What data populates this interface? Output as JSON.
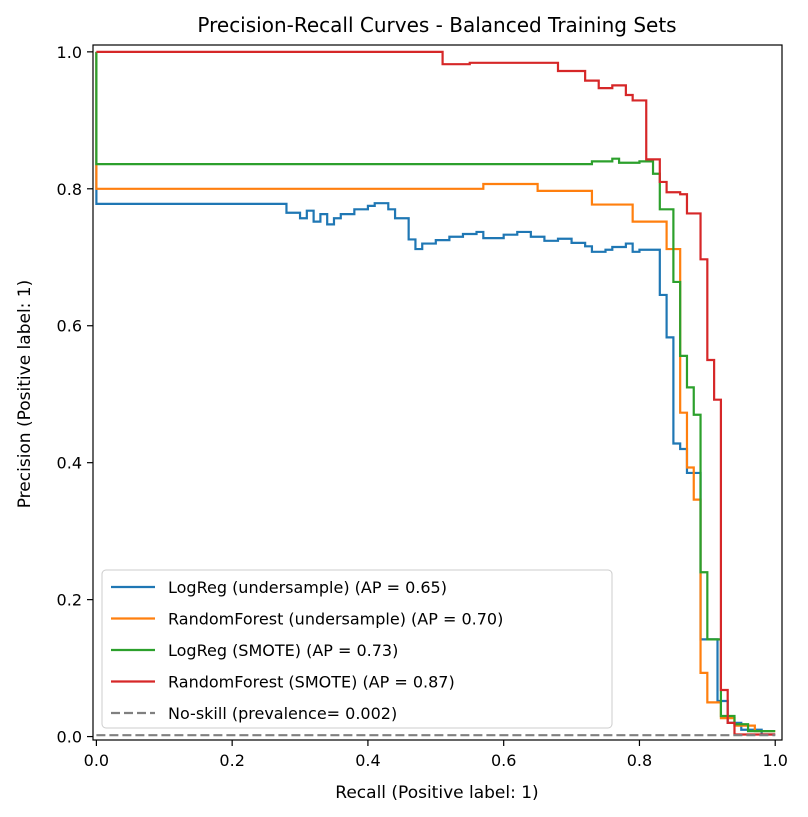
{
  "chart_data": {
    "type": "line",
    "title": "Precision-Recall Curves - Balanced Training Sets",
    "xlabel": "Recall (Positive label: 1)",
    "ylabel": "Precision (Positive label: 1)",
    "xlim": [
      -0.005,
      1.01
    ],
    "ylim": [
      -0.005,
      1.01
    ],
    "xticks": [
      0.0,
      0.2,
      0.4,
      0.6,
      0.8,
      1.0
    ],
    "xtick_labels": [
      "0.0",
      "0.2",
      "0.4",
      "0.6",
      "0.8",
      "1.0"
    ],
    "yticks": [
      0.0,
      0.2,
      0.4,
      0.6,
      0.8,
      1.0
    ],
    "ytick_labels": [
      "0.0",
      "0.2",
      "0.4",
      "0.6",
      "0.8",
      "1.0"
    ],
    "grid": false,
    "legend_position": "lower-left",
    "series": [
      {
        "name": "LogReg (undersample) (AP = 0.65)",
        "color": "#1f77b4",
        "step": true,
        "points": [
          [
            0.0,
            1.0
          ],
          [
            0.0,
            0.778
          ],
          [
            0.28,
            0.778
          ],
          [
            0.28,
            0.765
          ],
          [
            0.3,
            0.765
          ],
          [
            0.3,
            0.757
          ],
          [
            0.31,
            0.757
          ],
          [
            0.31,
            0.768
          ],
          [
            0.32,
            0.768
          ],
          [
            0.32,
            0.752
          ],
          [
            0.33,
            0.752
          ],
          [
            0.33,
            0.763
          ],
          [
            0.34,
            0.763
          ],
          [
            0.34,
            0.748
          ],
          [
            0.35,
            0.748
          ],
          [
            0.35,
            0.757
          ],
          [
            0.36,
            0.757
          ],
          [
            0.36,
            0.763
          ],
          [
            0.38,
            0.763
          ],
          [
            0.38,
            0.77
          ],
          [
            0.4,
            0.77
          ],
          [
            0.4,
            0.775
          ],
          [
            0.41,
            0.775
          ],
          [
            0.41,
            0.779
          ],
          [
            0.43,
            0.779
          ],
          [
            0.43,
            0.77
          ],
          [
            0.44,
            0.77
          ],
          [
            0.44,
            0.757
          ],
          [
            0.46,
            0.757
          ],
          [
            0.46,
            0.726
          ],
          [
            0.47,
            0.726
          ],
          [
            0.47,
            0.712
          ],
          [
            0.48,
            0.712
          ],
          [
            0.48,
            0.72
          ],
          [
            0.5,
            0.72
          ],
          [
            0.5,
            0.725
          ],
          [
            0.52,
            0.725
          ],
          [
            0.52,
            0.73
          ],
          [
            0.54,
            0.73
          ],
          [
            0.54,
            0.734
          ],
          [
            0.56,
            0.734
          ],
          [
            0.56,
            0.737
          ],
          [
            0.57,
            0.737
          ],
          [
            0.57,
            0.728
          ],
          [
            0.6,
            0.728
          ],
          [
            0.6,
            0.733
          ],
          [
            0.62,
            0.733
          ],
          [
            0.62,
            0.737
          ],
          [
            0.64,
            0.737
          ],
          [
            0.64,
            0.73
          ],
          [
            0.66,
            0.73
          ],
          [
            0.66,
            0.724
          ],
          [
            0.68,
            0.724
          ],
          [
            0.68,
            0.727
          ],
          [
            0.7,
            0.727
          ],
          [
            0.7,
            0.721
          ],
          [
            0.72,
            0.721
          ],
          [
            0.72,
            0.716
          ],
          [
            0.73,
            0.716
          ],
          [
            0.73,
            0.708
          ],
          [
            0.75,
            0.708
          ],
          [
            0.75,
            0.711
          ],
          [
            0.76,
            0.711
          ],
          [
            0.76,
            0.715
          ],
          [
            0.78,
            0.715
          ],
          [
            0.78,
            0.72
          ],
          [
            0.79,
            0.72
          ],
          [
            0.79,
            0.708
          ],
          [
            0.8,
            0.708
          ],
          [
            0.8,
            0.711
          ],
          [
            0.83,
            0.711
          ],
          [
            0.83,
            0.645
          ],
          [
            0.84,
            0.645
          ],
          [
            0.84,
            0.583
          ],
          [
            0.85,
            0.583
          ],
          [
            0.85,
            0.428
          ],
          [
            0.86,
            0.428
          ],
          [
            0.86,
            0.42
          ],
          [
            0.87,
            0.42
          ],
          [
            0.87,
            0.385
          ],
          [
            0.89,
            0.385
          ],
          [
            0.89,
            0.142
          ],
          [
            0.915,
            0.142
          ],
          [
            0.915,
            0.052
          ],
          [
            0.93,
            0.052
          ],
          [
            0.93,
            0.02
          ],
          [
            0.95,
            0.02
          ],
          [
            0.95,
            0.01
          ],
          [
            0.98,
            0.01
          ],
          [
            0.98,
            0.003
          ],
          [
            1.0,
            0.003
          ]
        ]
      },
      {
        "name": "RandomForest (undersample) (AP = 0.70)",
        "color": "#ff7f0e",
        "step": true,
        "points": [
          [
            0.0,
            1.0
          ],
          [
            0.0,
            0.8
          ],
          [
            0.57,
            0.8
          ],
          [
            0.57,
            0.807
          ],
          [
            0.65,
            0.807
          ],
          [
            0.65,
            0.797
          ],
          [
            0.73,
            0.797
          ],
          [
            0.73,
            0.777
          ],
          [
            0.79,
            0.777
          ],
          [
            0.79,
            0.752
          ],
          [
            0.84,
            0.752
          ],
          [
            0.84,
            0.712
          ],
          [
            0.86,
            0.712
          ],
          [
            0.86,
            0.473
          ],
          [
            0.87,
            0.473
          ],
          [
            0.87,
            0.393
          ],
          [
            0.88,
            0.393
          ],
          [
            0.88,
            0.346
          ],
          [
            0.89,
            0.346
          ],
          [
            0.89,
            0.093
          ],
          [
            0.9,
            0.093
          ],
          [
            0.9,
            0.05
          ],
          [
            0.92,
            0.05
          ],
          [
            0.92,
            0.027
          ],
          [
            0.94,
            0.027
          ],
          [
            0.94,
            0.016
          ],
          [
            0.97,
            0.016
          ],
          [
            0.97,
            0.008
          ],
          [
            1.0,
            0.008
          ]
        ]
      },
      {
        "name": "LogReg (SMOTE) (AP = 0.73)",
        "color": "#2ca02c",
        "step": true,
        "points": [
          [
            0.0,
            1.0
          ],
          [
            0.0,
            0.836
          ],
          [
            0.73,
            0.836
          ],
          [
            0.73,
            0.84
          ],
          [
            0.76,
            0.84
          ],
          [
            0.76,
            0.844
          ],
          [
            0.77,
            0.844
          ],
          [
            0.77,
            0.838
          ],
          [
            0.8,
            0.838
          ],
          [
            0.8,
            0.84
          ],
          [
            0.82,
            0.84
          ],
          [
            0.82,
            0.822
          ],
          [
            0.83,
            0.822
          ],
          [
            0.83,
            0.77
          ],
          [
            0.85,
            0.77
          ],
          [
            0.85,
            0.664
          ],
          [
            0.86,
            0.664
          ],
          [
            0.86,
            0.556
          ],
          [
            0.87,
            0.556
          ],
          [
            0.87,
            0.51
          ],
          [
            0.88,
            0.51
          ],
          [
            0.88,
            0.47
          ],
          [
            0.89,
            0.47
          ],
          [
            0.89,
            0.24
          ],
          [
            0.9,
            0.24
          ],
          [
            0.9,
            0.142
          ],
          [
            0.92,
            0.142
          ],
          [
            0.92,
            0.03
          ],
          [
            0.94,
            0.03
          ],
          [
            0.94,
            0.018
          ],
          [
            0.96,
            0.018
          ],
          [
            0.96,
            0.008
          ],
          [
            1.0,
            0.008
          ]
        ]
      },
      {
        "name": "RandomForest (SMOTE) (AP = 0.87)",
        "color": "#d62728",
        "step": true,
        "points": [
          [
            0.0,
            1.0
          ],
          [
            0.51,
            1.0
          ],
          [
            0.51,
            0.982
          ],
          [
            0.55,
            0.982
          ],
          [
            0.55,
            0.984
          ],
          [
            0.68,
            0.984
          ],
          [
            0.68,
            0.972
          ],
          [
            0.72,
            0.972
          ],
          [
            0.72,
            0.958
          ],
          [
            0.74,
            0.958
          ],
          [
            0.74,
            0.947
          ],
          [
            0.76,
            0.947
          ],
          [
            0.76,
            0.951
          ],
          [
            0.78,
            0.951
          ],
          [
            0.78,
            0.937
          ],
          [
            0.79,
            0.937
          ],
          [
            0.79,
            0.929
          ],
          [
            0.81,
            0.929
          ],
          [
            0.81,
            0.843
          ],
          [
            0.83,
            0.843
          ],
          [
            0.83,
            0.81
          ],
          [
            0.84,
            0.81
          ],
          [
            0.84,
            0.795
          ],
          [
            0.86,
            0.795
          ],
          [
            0.86,
            0.792
          ],
          [
            0.87,
            0.792
          ],
          [
            0.87,
            0.764
          ],
          [
            0.89,
            0.764
          ],
          [
            0.89,
            0.697
          ],
          [
            0.9,
            0.697
          ],
          [
            0.9,
            0.55
          ],
          [
            0.91,
            0.55
          ],
          [
            0.91,
            0.492
          ],
          [
            0.92,
            0.492
          ],
          [
            0.92,
            0.068
          ],
          [
            0.93,
            0.068
          ],
          [
            0.93,
            0.02
          ],
          [
            0.94,
            0.02
          ],
          [
            0.94,
            0.003
          ],
          [
            1.0,
            0.003
          ]
        ]
      },
      {
        "name": "No-skill (prevalence= 0.002)",
        "color": "#808080",
        "dashed": true,
        "points": [
          [
            0.0,
            0.002
          ],
          [
            1.0,
            0.002
          ]
        ]
      }
    ]
  }
}
